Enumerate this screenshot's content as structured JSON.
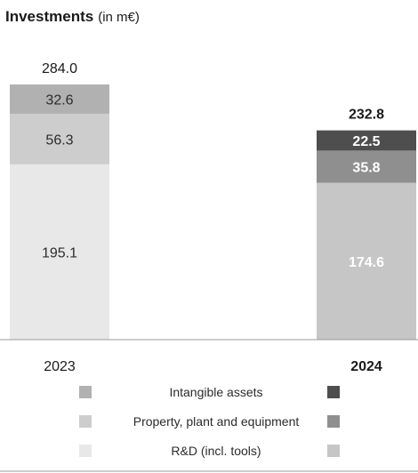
{
  "chart_data": {
    "type": "bar",
    "stacked": true,
    "title": "Investments",
    "title_unit": "(in m€)",
    "categories": [
      "2023",
      "2024"
    ],
    "totals": [
      284.0,
      232.8
    ],
    "totals_labels": [
      "284.0",
      "232.8"
    ],
    "series": [
      {
        "name": "R&D (incl. tools)",
        "values": [
          195.1,
          174.6
        ],
        "labels": [
          "195.1",
          "174.6"
        ],
        "colors": [
          "#e8e8e8",
          "#c6c6c6"
        ],
        "label_colors": [
          "#2b2b2b",
          "#ffffff"
        ]
      },
      {
        "name": "Property, plant and equipment",
        "values": [
          56.3,
          35.8
        ],
        "labels": [
          "56.3",
          "35.8"
        ],
        "colors": [
          "#cdcdcd",
          "#8f8f8f"
        ],
        "label_colors": [
          "#2b2b2b",
          "#ffffff"
        ]
      },
      {
        "name": "Intangible assets",
        "values": [
          32.6,
          22.5
        ],
        "labels": [
          "32.6",
          "22.5"
        ],
        "colors": [
          "#b1b1b1",
          "#4e4e4e"
        ],
        "label_colors": [
          "#2b2b2b",
          "#ffffff"
        ]
      }
    ],
    "legend_order": [
      2,
      1,
      0
    ],
    "ylim": [
      0,
      284.0
    ],
    "grid": false,
    "legend_placement": "bottom-center"
  }
}
